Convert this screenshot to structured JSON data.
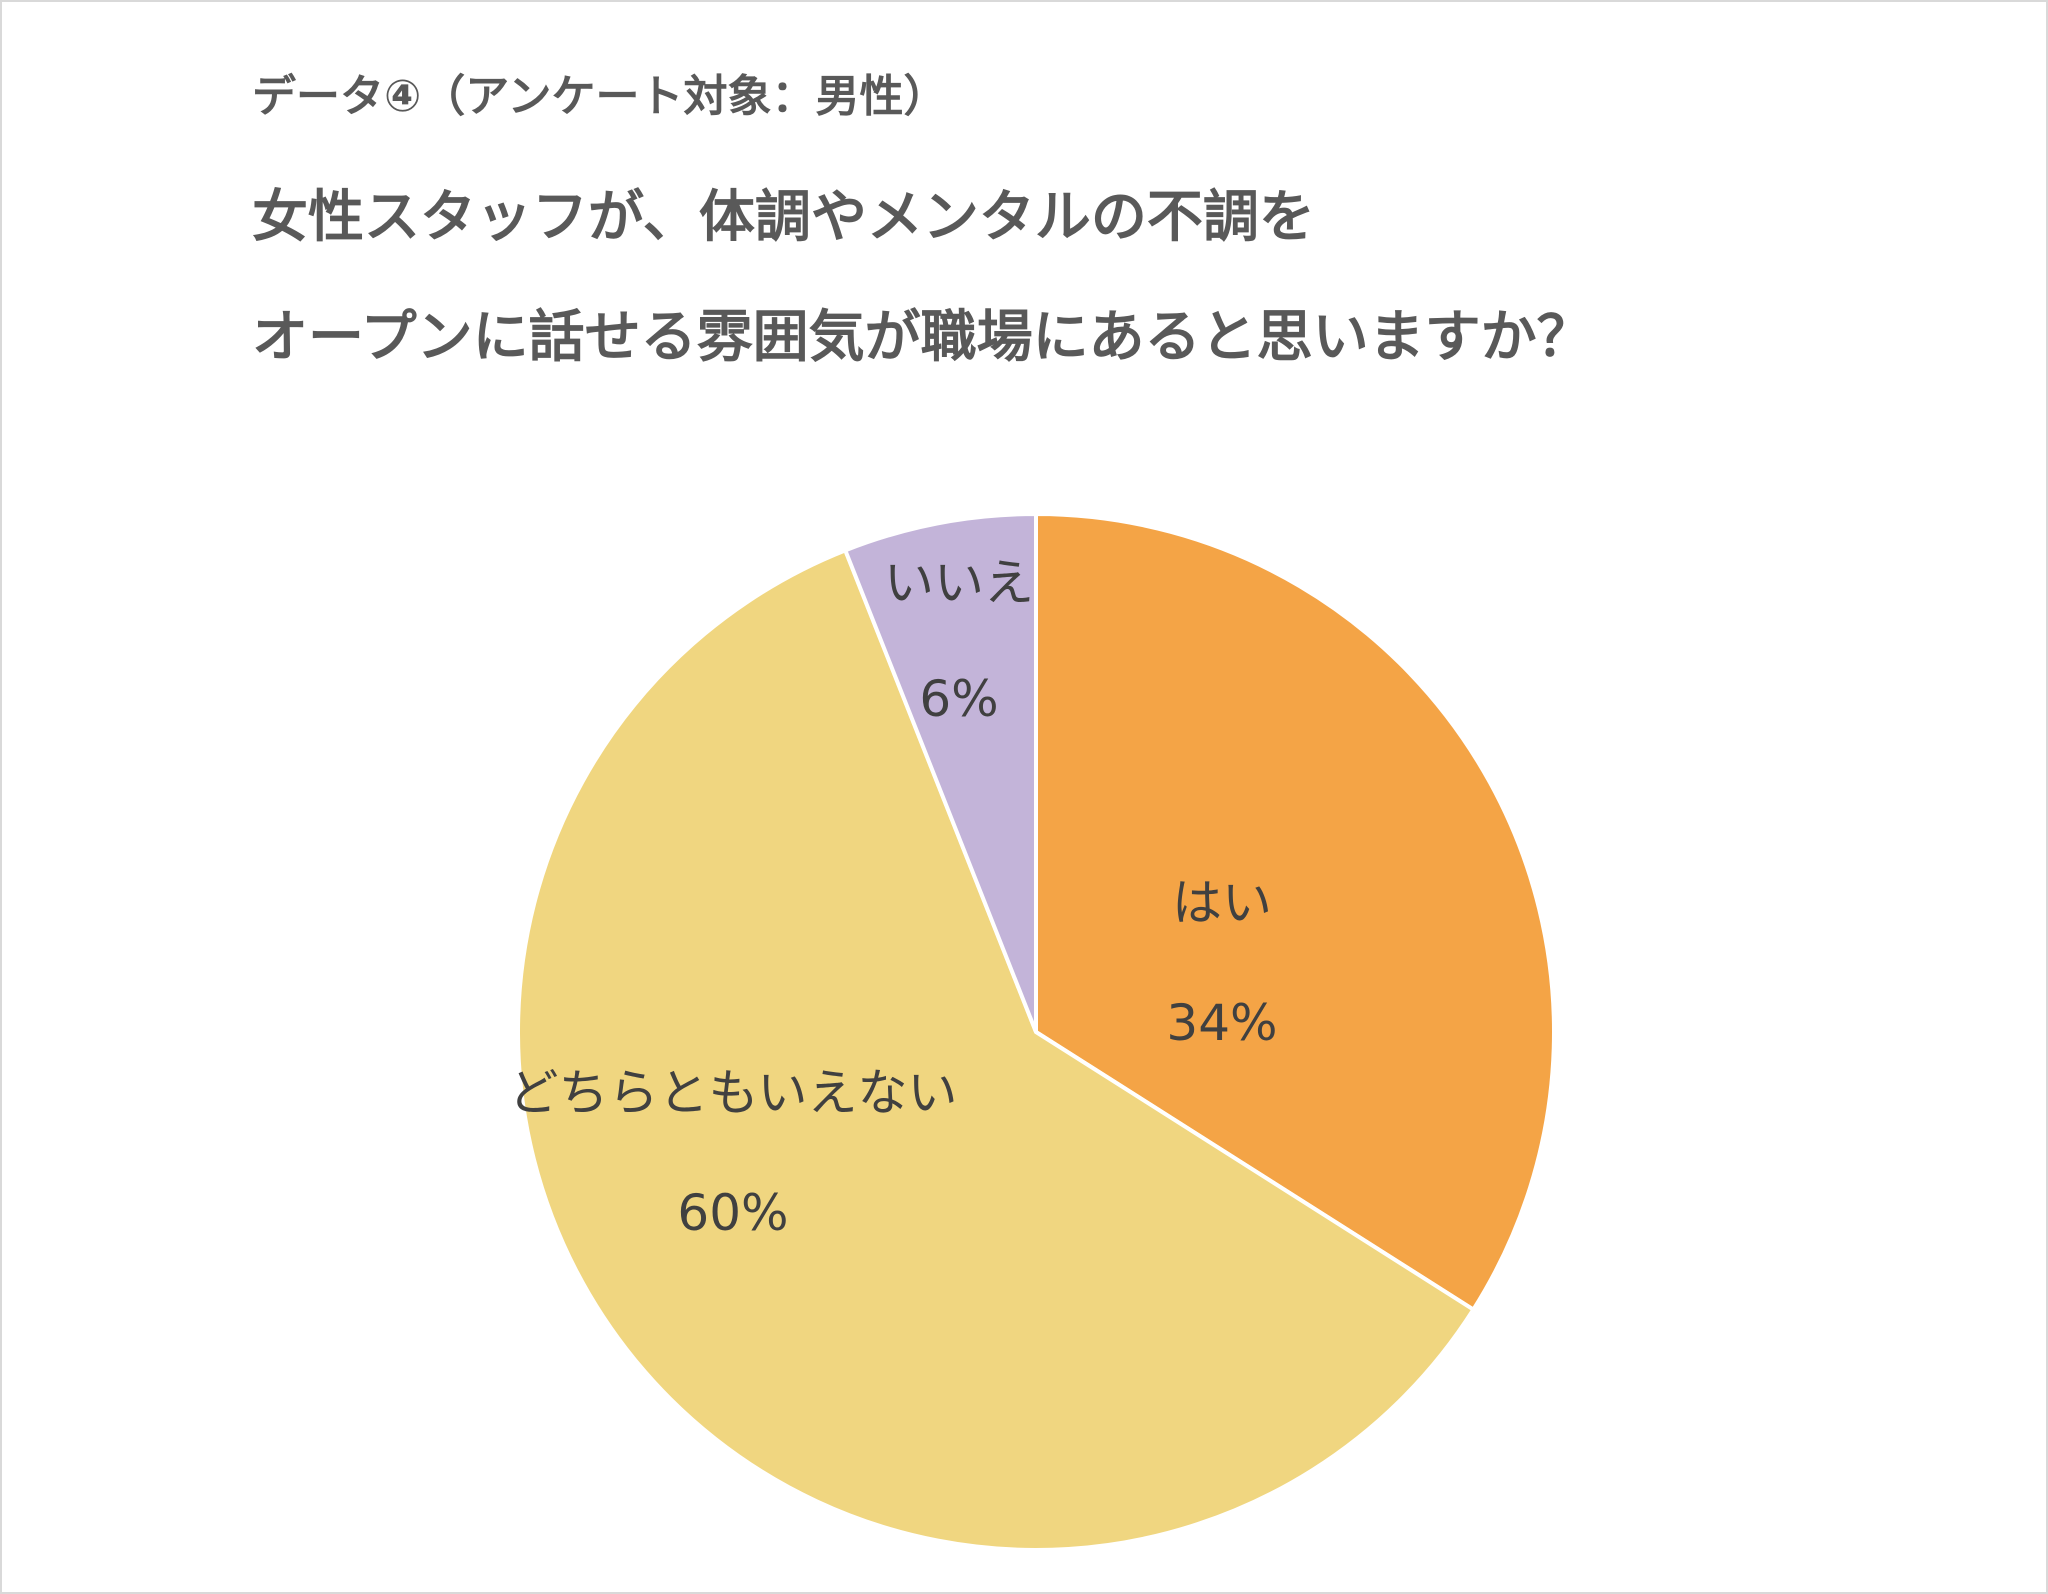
{
  "header": {
    "subtitle": "データ④（アンケート対象：男性）",
    "title_line1": "女性スタッフが、体調やメンタルの不調を",
    "title_line2": "オープンに話せる雰囲気が職場にあると思いますか？"
  },
  "chart_data": {
    "type": "pie",
    "title": "女性スタッフが、体調やメンタルの不調をオープンに話せる雰囲気が職場にあると思いますか？",
    "subtitle": "データ④（アンケート対象：男性）",
    "start_angle": "12 o'clock",
    "direction": "clockwise",
    "slices": [
      {
        "label": "はい",
        "value": 34,
        "value_label": "34%",
        "color": "#F4A446"
      },
      {
        "label": "どちらともいえない",
        "value": 60,
        "value_label": "60%",
        "color": "#F0D680"
      },
      {
        "label": "いいえ",
        "value": 6,
        "value_label": "6%",
        "color": "#C3B4D9"
      }
    ],
    "legend": "none"
  }
}
